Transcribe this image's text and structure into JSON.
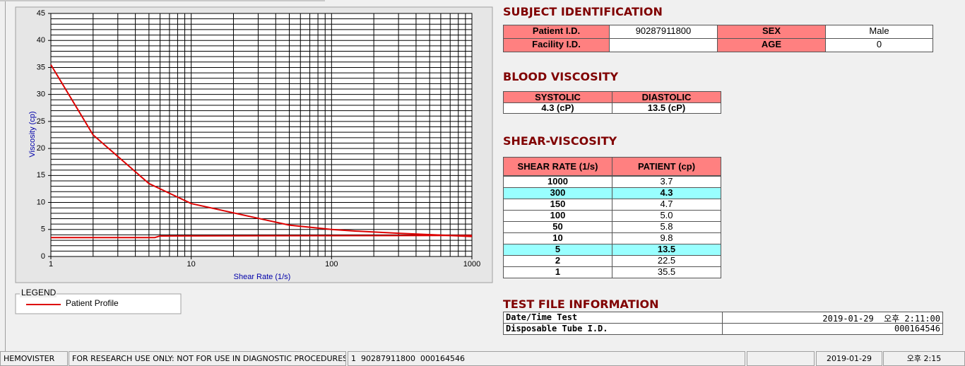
{
  "chart_data": {
    "type": "line",
    "x_label": "Shear Rate (1/s)",
    "y_label": "Viscosity (cp)",
    "log_x": true,
    "xlim": [
      1,
      1000
    ],
    "ylim": [
      0,
      45
    ],
    "xticks": [
      1,
      10,
      100,
      1000
    ],
    "yticks": [
      0,
      5,
      10,
      15,
      20,
      25,
      30,
      35,
      40,
      45
    ],
    "x_minor_ticks": [
      2,
      3,
      4,
      5,
      6,
      7,
      8,
      9,
      20,
      30,
      40,
      50,
      60,
      70,
      80,
      90,
      200,
      300,
      400,
      500,
      600,
      700,
      800,
      900
    ],
    "y_minor_ticks": [
      1,
      2,
      3,
      4,
      6,
      7,
      8,
      9,
      11,
      12,
      13,
      14,
      16,
      17,
      18,
      19,
      21,
      22,
      23,
      24,
      26,
      27,
      28,
      29,
      31,
      32,
      33,
      34,
      36,
      37,
      38,
      39,
      41,
      42,
      43,
      44
    ],
    "grid": true,
    "legend_title": "LEGEND",
    "series": [
      {
        "name": "Patient Profile",
        "color": "#dd0000",
        "x": [
          1,
          2,
          5,
          10,
          50,
          100,
          150,
          300,
          1000
        ],
        "values": [
          35.5,
          22.5,
          13.5,
          9.8,
          5.8,
          5.0,
          4.7,
          4.3,
          3.7
        ]
      },
      {
        "color": "#dd0000",
        "x": [
          1,
          5.5,
          6,
          1000
        ],
        "values": [
          3.5,
          3.5,
          3.8,
          3.9
        ]
      }
    ]
  },
  "subject": {
    "title": "SUBJECT IDENTIFICATION",
    "fields": [
      {
        "label": "Patient I.D.",
        "value": "90287911800"
      },
      {
        "label": "SEX",
        "value": "Male"
      },
      {
        "label": "Facility I.D."
      },
      {
        "label": "AGE",
        "value": "0"
      }
    ]
  },
  "blood": {
    "title": "BLOOD VISCOSITY",
    "headers": [
      "SYSTOLIC",
      "DIASTOLIC"
    ],
    "values": [
      "4.3 (cP)",
      "13.5 (cP)"
    ]
  },
  "shear": {
    "title": "SHEAR-VISCOSITY",
    "headers": [
      "SHEAR RATE (1/s)",
      "PATIENT (cp)"
    ],
    "rows": [
      {
        "rate": "1000",
        "value": "3.7"
      },
      {
        "rate": "300",
        "value": "4.3",
        "highlighted": true
      },
      {
        "rate": "150",
        "value": "4.7"
      },
      {
        "rate": "100",
        "value": "5.0"
      },
      {
        "rate": "50",
        "value": "5.8"
      },
      {
        "rate": "10",
        "value": "9.8"
      },
      {
        "rate": "5",
        "value": "13.5",
        "highlighted": true
      },
      {
        "rate": "2",
        "value": "22.5"
      },
      {
        "rate": "1",
        "value": "35.5"
      }
    ]
  },
  "test_file": {
    "title": "TEST FILE INFORMATION",
    "rows": [
      [
        "Date/Time Test",
        "2019-01-29  오후 2:11:00"
      ],
      [
        "Disposable Tube I.D.",
        "000164546"
      ]
    ]
  },
  "status_bar": [
    "HEMOVISTER",
    "FOR RESEARCH USE ONLY: NOT FOR USE IN DIAGNOSTIC PROCEDURES",
    "1  90287911800  000164546",
    "2019-01-29",
    "오후 2:15"
  ]
}
